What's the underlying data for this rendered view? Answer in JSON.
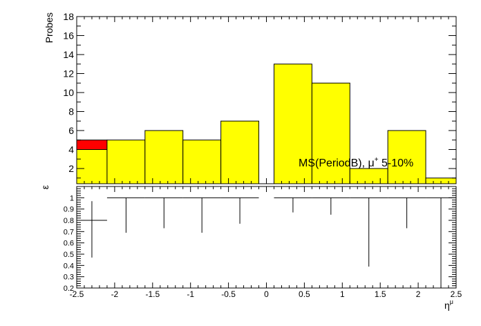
{
  "chart_data": [
    {
      "type": "bar",
      "panel": "top",
      "ylabel": "Probes",
      "annotation": {
        "text_main": "MS(PeriodB), μ",
        "text_sup": "+",
        "text_tail": " 5-10%"
      },
      "xlim": [
        -2.5,
        2.5
      ],
      "ylim": [
        0.4,
        18
      ],
      "yticks": [
        2,
        4,
        6,
        8,
        10,
        12,
        14,
        16,
        18
      ],
      "bins": [
        {
          "lo": -2.5,
          "hi": -2.1,
          "total": 5,
          "passed": 4
        },
        {
          "lo": -2.1,
          "hi": -1.6,
          "total": 5,
          "passed": 5
        },
        {
          "lo": -1.6,
          "hi": -1.1,
          "total": 6,
          "passed": 6
        },
        {
          "lo": -1.1,
          "hi": -0.6,
          "total": 5,
          "passed": 5
        },
        {
          "lo": -0.6,
          "hi": -0.1,
          "total": 7,
          "passed": 7
        },
        {
          "lo": 0.1,
          "hi": 0.6,
          "total": 13,
          "passed": 13
        },
        {
          "lo": 0.6,
          "hi": 1.1,
          "total": 11,
          "passed": 11
        },
        {
          "lo": 1.1,
          "hi": 1.6,
          "total": 2,
          "passed": 2
        },
        {
          "lo": 1.6,
          "hi": 2.1,
          "total": 6,
          "passed": 6
        },
        {
          "lo": 2.1,
          "hi": 2.5,
          "total": 1,
          "passed": 1
        }
      ],
      "colors": {
        "passed": "#ffff00",
        "failed": "#ff0000"
      }
    },
    {
      "type": "scatter",
      "panel": "bottom",
      "ylabel": "ε",
      "xlabel_main": "η",
      "xlabel_sup": "μ",
      "xlim": [
        -2.5,
        2.5
      ],
      "ylim": [
        0.2,
        1.1
      ],
      "xticks": [
        -2.5,
        -2,
        -1.5,
        -1,
        -0.5,
        0,
        0.5,
        1,
        1.5,
        2,
        2.5
      ],
      "xtick_labels": [
        "-2.5",
        "-2",
        "-1.5",
        "-1",
        "-0.5",
        "0",
        "0.5",
        "1",
        "1.5",
        "2",
        "2.5"
      ],
      "yticks": [
        0.2,
        0.3,
        0.4,
        0.5,
        0.6,
        0.7,
        0.8,
        0.9,
        1
      ],
      "ytick_labels": [
        "0.2",
        "0.3",
        "0.4",
        "0.5",
        "0.6",
        "0.7",
        "0.8",
        "0.9",
        "1"
      ],
      "points": [
        {
          "lo": -2.5,
          "hi": -2.1,
          "x": -2.3,
          "y": 0.8,
          "ylow": 0.47,
          "yhigh": 0.97
        },
        {
          "lo": -2.1,
          "hi": -1.6,
          "x": -1.85,
          "y": 1.0,
          "ylow": 0.69,
          "yhigh": 1.0
        },
        {
          "lo": -1.6,
          "hi": -1.1,
          "x": -1.35,
          "y": 1.0,
          "ylow": 0.73,
          "yhigh": 1.0
        },
        {
          "lo": -1.1,
          "hi": -0.6,
          "x": -0.85,
          "y": 1.0,
          "ylow": 0.69,
          "yhigh": 1.0
        },
        {
          "lo": -0.6,
          "hi": -0.1,
          "x": -0.35,
          "y": 1.0,
          "ylow": 0.77,
          "yhigh": 1.0
        },
        {
          "lo": 0.1,
          "hi": 0.6,
          "x": 0.35,
          "y": 1.0,
          "ylow": 0.87,
          "yhigh": 1.0
        },
        {
          "lo": 0.6,
          "hi": 1.1,
          "x": 0.85,
          "y": 1.0,
          "ylow": 0.85,
          "yhigh": 1.0
        },
        {
          "lo": 1.1,
          "hi": 1.6,
          "x": 1.35,
          "y": 1.0,
          "ylow": 0.39,
          "yhigh": 1.0
        },
        {
          "lo": 1.6,
          "hi": 2.1,
          "x": 1.85,
          "y": 1.0,
          "ylow": 0.73,
          "yhigh": 1.0
        },
        {
          "lo": 2.1,
          "hi": 2.5,
          "x": 2.3,
          "y": 1.0,
          "ylow": 0.2,
          "yhigh": 1.0
        }
      ]
    }
  ]
}
